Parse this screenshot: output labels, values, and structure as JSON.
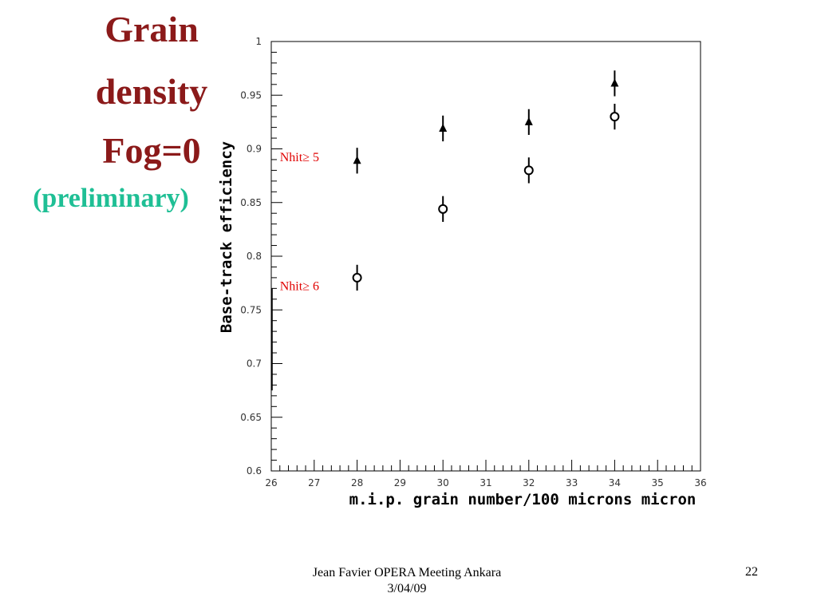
{
  "title_lines": [
    "Grain",
    "density",
    "Fog=0"
  ],
  "subtitle": "(preliminary)",
  "colors": {
    "title": "#8b1a1a",
    "subtitle": "#1fbf95",
    "annotation": "#e00000"
  },
  "footer": {
    "line1": "Jean Favier  OPERA Meeting Ankara",
    "line2": "3/04/09"
  },
  "page_number": "22",
  "chart_data": {
    "type": "scatter",
    "xlabel": "m.i.p. grain number/100 microns micron",
    "ylabel": "Base-track efficiency",
    "xlim": [
      26,
      36
    ],
    "ylim": [
      0.6,
      1.0
    ],
    "x_ticks": [
      26,
      27,
      28,
      29,
      30,
      31,
      32,
      33,
      34,
      35,
      36
    ],
    "y_ticks": [
      0.6,
      0.65,
      0.7,
      0.75,
      0.8,
      0.85,
      0.9,
      0.95,
      1.0
    ],
    "y_tick_labels": [
      "0.6",
      "0.65",
      "0.7",
      "0.75",
      "0.8",
      "0.85",
      "0.9",
      "0.95",
      "1"
    ],
    "grid": false,
    "series": [
      {
        "marker": "triangle-filled",
        "x": [
          28,
          30,
          32,
          34
        ],
        "y": [
          0.889,
          0.919,
          0.925,
          0.961
        ],
        "yerr": [
          0.012,
          0.012,
          0.012,
          0.012
        ]
      },
      {
        "marker": "circle-open",
        "x": [
          28,
          30,
          32,
          34
        ],
        "y": [
          0.78,
          0.844,
          0.88,
          0.93
        ],
        "yerr": [
          0.012,
          0.012,
          0.012,
          0.012
        ]
      }
    ],
    "annotations": [
      {
        "text": "Nhit≥ 5",
        "x": 26.2,
        "y": 0.893
      },
      {
        "text": "Nhit≥ 6",
        "x": 26.2,
        "y": 0.773
      }
    ]
  }
}
